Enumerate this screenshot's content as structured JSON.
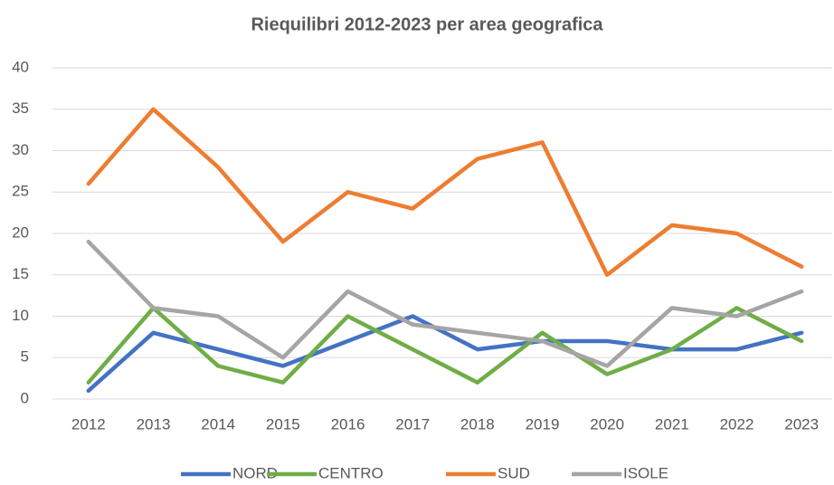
{
  "chart_data": {
    "type": "line",
    "title": "Riequilibri 2012-2023 per area geografica",
    "categories": [
      "2012",
      "2013",
      "2014",
      "2015",
      "2016",
      "2017",
      "2018",
      "2019",
      "2020",
      "2021",
      "2022",
      "2023"
    ],
    "series": [
      {
        "name": "NORD",
        "color": "#4472c4",
        "values": [
          1,
          8,
          6,
          4,
          7,
          10,
          6,
          7,
          7,
          6,
          6,
          8
        ]
      },
      {
        "name": "CENTRO",
        "color": "#70ad47",
        "values": [
          2,
          11,
          4,
          2,
          10,
          6,
          2,
          8,
          3,
          6,
          11,
          7
        ]
      },
      {
        "name": "SUD",
        "color": "#ed7d31",
        "values": [
          26,
          35,
          28,
          19,
          25,
          23,
          29,
          31,
          15,
          21,
          20,
          16
        ]
      },
      {
        "name": "ISOLE",
        "color": "#a5a5a5",
        "values": [
          19,
          11,
          10,
          5,
          13,
          9,
          8,
          7,
          4,
          11,
          10,
          13
        ]
      }
    ],
    "ylim": [
      0,
      40
    ],
    "yticks": [
      0,
      5,
      10,
      15,
      20,
      25,
      30,
      35,
      40
    ],
    "grid": true,
    "legend": "bottom"
  }
}
